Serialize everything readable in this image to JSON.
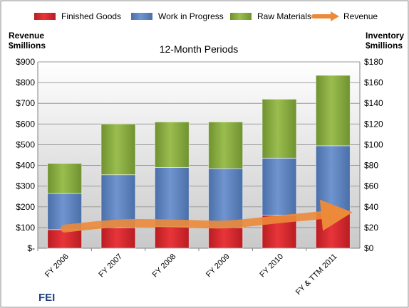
{
  "chart_data": {
    "type": "bar",
    "title": "12-Month Periods",
    "company": "FEI",
    "categories": [
      "FY 2006",
      "FY 2007",
      "FY 2008",
      "FY 2009",
      "FY 2010",
      "FY & TTM 2011"
    ],
    "series": [
      {
        "name": "Finished Goods",
        "axis": "right",
        "stack": true,
        "values": [
          18,
          20,
          21,
          20,
          32,
          34
        ],
        "color": "#d9262b"
      },
      {
        "name": "Work in Progress",
        "axis": "right",
        "stack": true,
        "values": [
          35,
          51,
          57,
          57,
          55,
          65
        ],
        "color": "#5b82c0"
      },
      {
        "name": "Raw Materials",
        "axis": "right",
        "stack": true,
        "values": [
          29,
          49,
          44,
          45,
          57,
          68
        ],
        "color": "#84a83a"
      },
      {
        "name": "Revenue",
        "axis": "left",
        "type": "line",
        "values": [
          95,
          120,
          120,
          115,
          140,
          165
        ],
        "color": "#ec8a3a"
      }
    ],
    "left_axis": {
      "label": "Revenue $millions",
      "label_lines": [
        "Revenue",
        "$millions"
      ],
      "min": 0,
      "max": 900,
      "step": 100,
      "ticks": [
        "$-",
        "$100",
        "$200",
        "$300",
        "$400",
        "$500",
        "$600",
        "$700",
        "$800",
        "$900"
      ]
    },
    "right_axis": {
      "label": "Inventory $millions",
      "label_lines": [
        "Inventory",
        "$millions"
      ],
      "min": 0,
      "max": 180,
      "step": 20,
      "ticks": [
        "$0",
        "$20",
        "$40",
        "$60",
        "$80",
        "$100",
        "$120",
        "$140",
        "$160",
        "$180"
      ]
    },
    "legend_position": "top",
    "grid": true
  }
}
